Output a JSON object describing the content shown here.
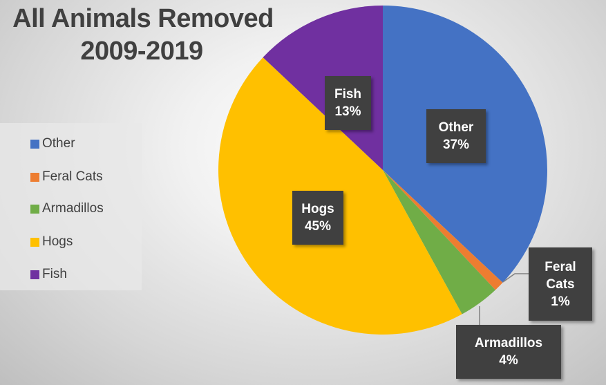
{
  "chart_data": {
    "type": "pie",
    "title_lines": [
      "All Animals Removed",
      "2009-2019"
    ],
    "categories": [
      "Other",
      "Feral Cats",
      "Armadillos",
      "Hogs",
      "Fish"
    ],
    "values": [
      37,
      1,
      4,
      45,
      13
    ],
    "value_labels": [
      "37%",
      "1%",
      "4%",
      "45%",
      "13%"
    ],
    "data_label_lines": {
      "other": [
        "Other",
        "37%"
      ],
      "feral_cats": [
        "Feral",
        "Cats",
        "1%"
      ],
      "armadillos": [
        "Armadillos",
        "4%"
      ],
      "hogs": [
        "Hogs",
        "45%"
      ],
      "fish": [
        "Fish",
        "13%"
      ]
    },
    "colors": [
      "#4472C4",
      "#ED7D31",
      "#70AD47",
      "#FFC000",
      "#7030A0"
    ],
    "legend_position": "left",
    "start_angle": "top, clockwise"
  }
}
